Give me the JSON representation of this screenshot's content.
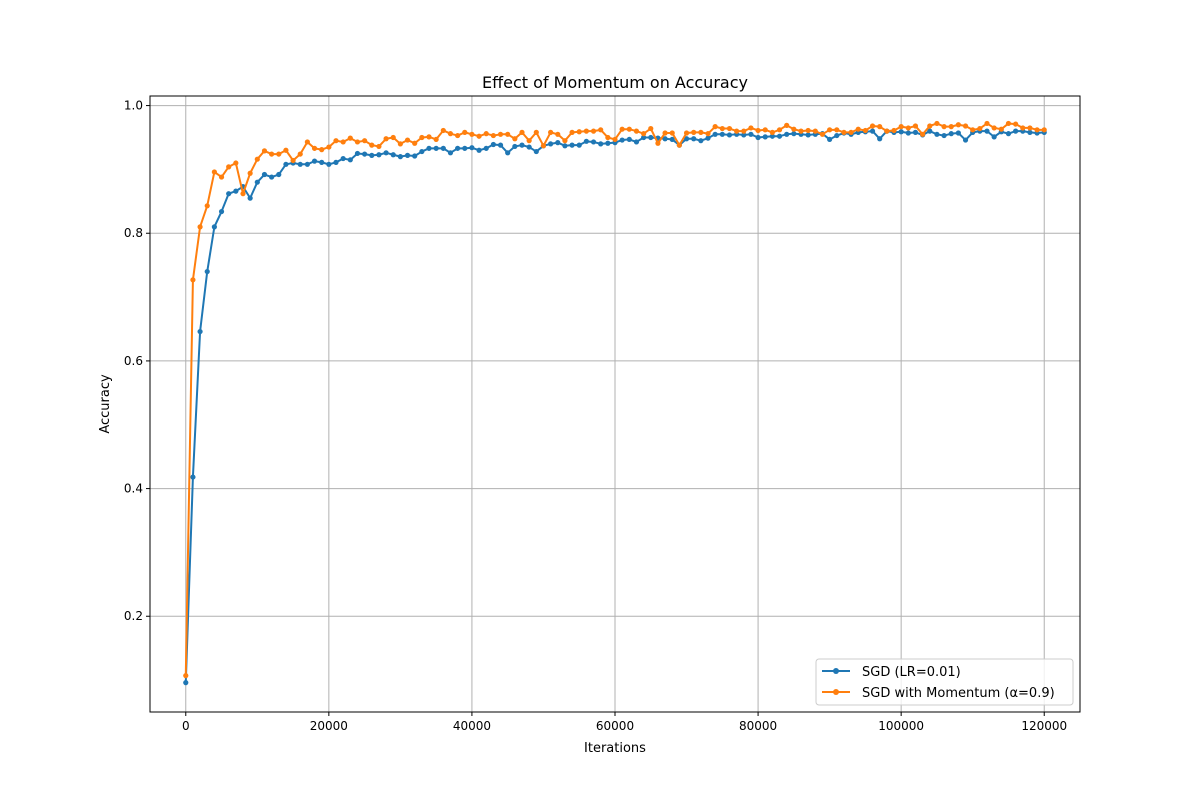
{
  "chart_data": {
    "type": "line",
    "title": "Effect of Momentum on Accuracy",
    "xlabel": "Iterations",
    "ylabel": "Accuracy",
    "xlim": [
      -5000,
      125000
    ],
    "ylim": [
      0.05,
      1.015
    ],
    "xticks": [
      0,
      20000,
      40000,
      60000,
      80000,
      100000,
      120000
    ],
    "xtick_labels": [
      "0",
      "20000",
      "40000",
      "60000",
      "80000",
      "100000",
      "120000"
    ],
    "yticks": [
      0.2,
      0.4,
      0.6,
      0.8,
      1.0
    ],
    "ytick_labels": [
      "0.2",
      "0.4",
      "0.6",
      "0.8",
      "1.0"
    ],
    "grid": true,
    "legend_position": "bottom-right",
    "x_start": 0,
    "x_step": 1000,
    "series": [
      {
        "name": "SGD (LR=0.01)",
        "color": "#1f77b4",
        "marker": "circle",
        "values": [
          0.096,
          0.418,
          0.646,
          0.74,
          0.81,
          0.834,
          0.862,
          0.866,
          0.873,
          0.855,
          0.88,
          0.892,
          0.888,
          0.892,
          0.908,
          0.91,
          0.908,
          0.908,
          0.913,
          0.911,
          0.908,
          0.911,
          0.917,
          0.915,
          0.925,
          0.924,
          0.922,
          0.923,
          0.926,
          0.923,
          0.92,
          0.922,
          0.921,
          0.928,
          0.933,
          0.933,
          0.933,
          0.926,
          0.933,
          0.933,
          0.934,
          0.93,
          0.933,
          0.939,
          0.938,
          0.926,
          0.936,
          0.938,
          0.935,
          0.928,
          0.937,
          0.94,
          0.942,
          0.937,
          0.938,
          0.938,
          0.944,
          0.943,
          0.94,
          0.941,
          0.942,
          0.946,
          0.947,
          0.943,
          0.95,
          0.95,
          0.949,
          0.948,
          0.947,
          0.938,
          0.948,
          0.948,
          0.945,
          0.949,
          0.955,
          0.955,
          0.954,
          0.955,
          0.954,
          0.955,
          0.95,
          0.951,
          0.952,
          0.952,
          0.955,
          0.956,
          0.955,
          0.954,
          0.955,
          0.956,
          0.947,
          0.953,
          0.957,
          0.955,
          0.958,
          0.959,
          0.96,
          0.948,
          0.96,
          0.958,
          0.959,
          0.957,
          0.958,
          0.954,
          0.96,
          0.955,
          0.953,
          0.956,
          0.957,
          0.946,
          0.958,
          0.96,
          0.96,
          0.951,
          0.959,
          0.956,
          0.96,
          0.96,
          0.958,
          0.957,
          0.958
        ]
      },
      {
        "name": "SGD with Momentum (α=0.9)",
        "color": "#ff7f0e",
        "marker": "circle",
        "values": [
          0.107,
          0.727,
          0.81,
          0.843,
          0.896,
          0.888,
          0.904,
          0.91,
          0.862,
          0.894,
          0.916,
          0.929,
          0.924,
          0.924,
          0.93,
          0.914,
          0.924,
          0.943,
          0.933,
          0.931,
          0.935,
          0.945,
          0.943,
          0.949,
          0.943,
          0.945,
          0.938,
          0.936,
          0.948,
          0.95,
          0.94,
          0.946,
          0.941,
          0.95,
          0.951,
          0.947,
          0.961,
          0.956,
          0.953,
          0.958,
          0.955,
          0.952,
          0.956,
          0.953,
          0.955,
          0.955,
          0.948,
          0.958,
          0.945,
          0.958,
          0.937,
          0.958,
          0.955,
          0.945,
          0.958,
          0.959,
          0.96,
          0.96,
          0.962,
          0.95,
          0.947,
          0.963,
          0.963,
          0.96,
          0.956,
          0.964,
          0.941,
          0.957,
          0.957,
          0.938,
          0.957,
          0.958,
          0.958,
          0.956,
          0.967,
          0.964,
          0.964,
          0.96,
          0.96,
          0.965,
          0.961,
          0.962,
          0.958,
          0.962,
          0.969,
          0.963,
          0.96,
          0.961,
          0.96,
          0.955,
          0.962,
          0.962,
          0.958,
          0.958,
          0.963,
          0.961,
          0.968,
          0.967,
          0.96,
          0.961,
          0.967,
          0.965,
          0.968,
          0.955,
          0.968,
          0.972,
          0.967,
          0.967,
          0.97,
          0.968,
          0.962,
          0.964,
          0.972,
          0.965,
          0.963,
          0.972,
          0.971,
          0.965,
          0.965,
          0.962,
          0.962
        ]
      }
    ]
  }
}
